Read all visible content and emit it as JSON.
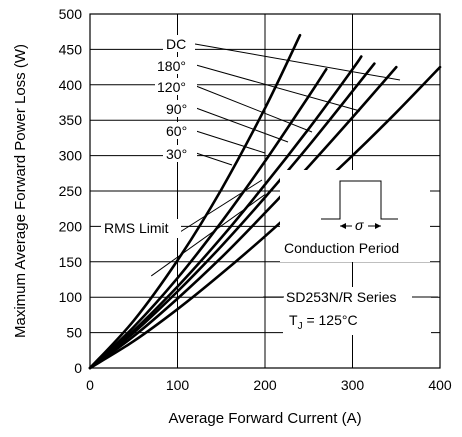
{
  "chart_data": {
    "type": "line",
    "title": "",
    "xlabel": "Average Forward Current (A)",
    "ylabel": "Maximum Average Forward Power Loss (W)",
    "xlim": [
      0,
      400
    ],
    "ylim": [
      0,
      500
    ],
    "x_ticks": [
      "0",
      "100",
      "200",
      "300",
      "400"
    ],
    "y_ticks": [
      "0",
      "50",
      "100",
      "150",
      "200",
      "250",
      "300",
      "350",
      "400",
      "450",
      "500"
    ],
    "grid": true,
    "series": [
      {
        "name": "DC",
        "x": [
          0,
          50,
          100,
          150,
          200,
          250,
          300,
          350,
          400
        ],
        "y": [
          0,
          38,
          83,
          133,
          186,
          242,
          300,
          361,
          425
        ]
      },
      {
        "name": "180°",
        "x": [
          0,
          50,
          100,
          150,
          200,
          250,
          300,
          350
        ],
        "y": [
          0,
          45,
          98,
          156,
          219,
          285,
          354,
          425
        ]
      },
      {
        "name": "120°",
        "x": [
          0,
          50,
          100,
          150,
          200,
          250,
          300,
          325
        ],
        "y": [
          0,
          50,
          108,
          172,
          241,
          314,
          391,
          430
        ]
      },
      {
        "name": "90°",
        "x": [
          0,
          50,
          100,
          150,
          200,
          250,
          300,
          310
        ],
        "y": [
          0,
          53,
          115,
          184,
          259,
          338,
          422,
          440
        ]
      },
      {
        "name": "60°",
        "x": [
          0,
          50,
          100,
          150,
          200,
          250,
          270
        ],
        "y": [
          0,
          58,
          127,
          206,
          292,
          384,
          422
        ]
      },
      {
        "name": "30°",
        "x": [
          0,
          50,
          100,
          150,
          200,
          240
        ],
        "y": [
          0,
          67,
          152,
          252,
          367,
          470
        ]
      }
    ],
    "rms_limit": {
      "x": [
        70,
        200
      ],
      "y": [
        130,
        245
      ]
    },
    "annotations": {
      "series_labels": [
        "DC",
        "180°",
        "120°",
        "90°",
        "60°",
        "30°"
      ],
      "rms_limit": "RMS Limit",
      "conduction_period": "Conduction Period",
      "conduction_symbol": "σ",
      "series": "SD253N/R Series",
      "tj_text_prefix": "T",
      "tj_subscript": "J",
      "tj_text_value": " = 125°C"
    }
  }
}
